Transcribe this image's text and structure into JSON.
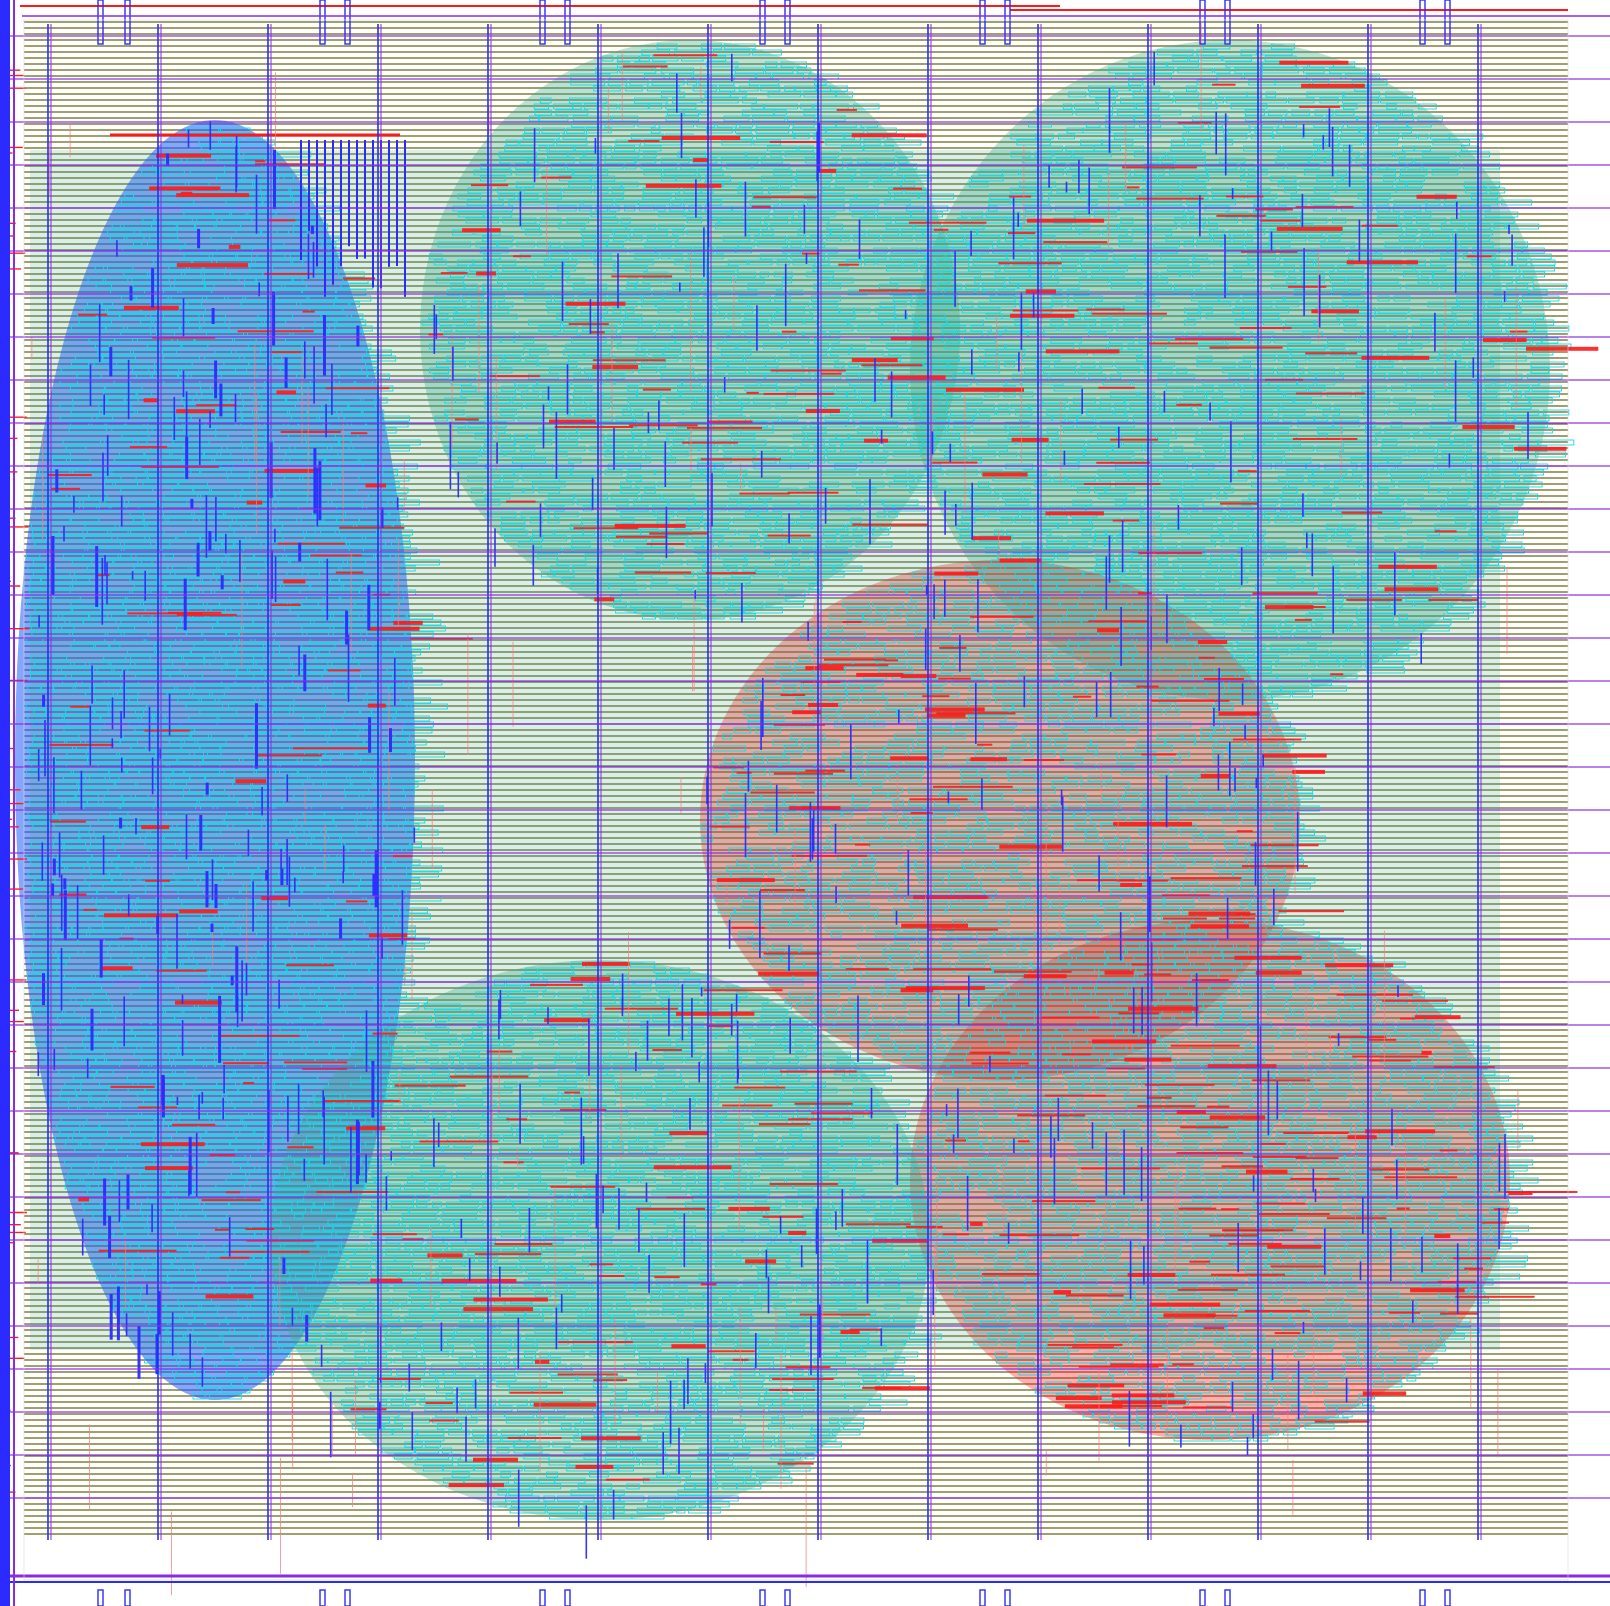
{
  "view": {
    "background": "#ffffff",
    "content": "chip-layout-render",
    "visible_text": []
  },
  "palette": {
    "power_rail_stripe": "#6b6b1e",
    "metal_vertical_strap": "#2b2bff",
    "metal_horizontal_signal": "#ff1a1a",
    "cell_outline": "#18d6e6",
    "cell_fill_teal": "#3aa88a",
    "dense_logic_blue": "#1f5cff",
    "violet_strap": "#8a2be2",
    "pink_route": "#ff7a7a"
  },
  "clusters": [
    {
      "name": "macro-left",
      "tone": "dense_logic_blue"
    },
    {
      "name": "cluster-top-center",
      "tone": "cell_fill_teal"
    },
    {
      "name": "cluster-top-right",
      "tone": "cell_fill_teal"
    },
    {
      "name": "cluster-mid-right",
      "tone": "metal_horizontal_signal"
    },
    {
      "name": "cluster-bottom-right",
      "tone": "metal_horizontal_signal"
    },
    {
      "name": "cluster-bottom-center",
      "tone": "cell_fill_teal"
    }
  ]
}
